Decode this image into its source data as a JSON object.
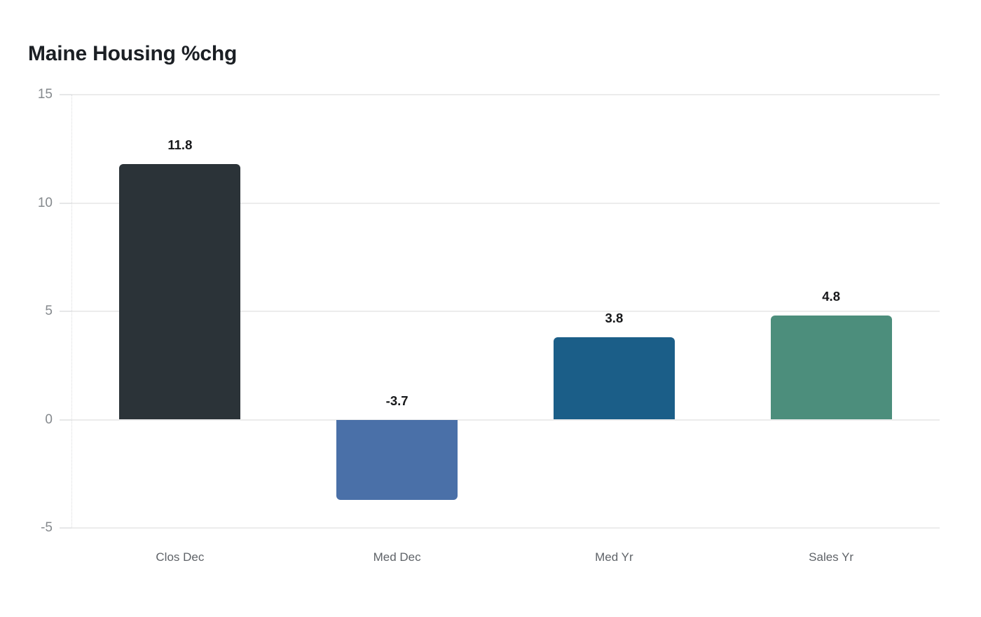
{
  "title": "Maine Housing %chg",
  "chart_data": {
    "type": "bar",
    "title": "Maine Housing %chg",
    "categories": [
      "Clos Dec",
      "Med Dec",
      "Med Yr",
      "Sales Yr"
    ],
    "values": [
      11.8,
      -3.7,
      3.8,
      4.8
    ],
    "value_labels": [
      "11.8",
      "-3.7",
      "3.8",
      "4.8"
    ],
    "bar_colors": [
      "#2b3338",
      "#4a70a8",
      "#1b5e88",
      "#4c8e7c"
    ],
    "xlabel": "",
    "ylabel": "",
    "ylim": [
      -5,
      15
    ],
    "yticks": [
      15,
      10,
      5,
      0,
      -5
    ],
    "ytick_labels": [
      "15",
      "10",
      "5",
      "0",
      "-5"
    ],
    "grid": true,
    "legend": false,
    "colors": {
      "background": "#ffffff",
      "title_text": "#1b1f24",
      "gridline": "#ececec",
      "axis_line": "#d9dadc",
      "ytick_text": "#85898d",
      "xtick_text": "#5f6368",
      "value_label_text": "#17181a"
    }
  }
}
